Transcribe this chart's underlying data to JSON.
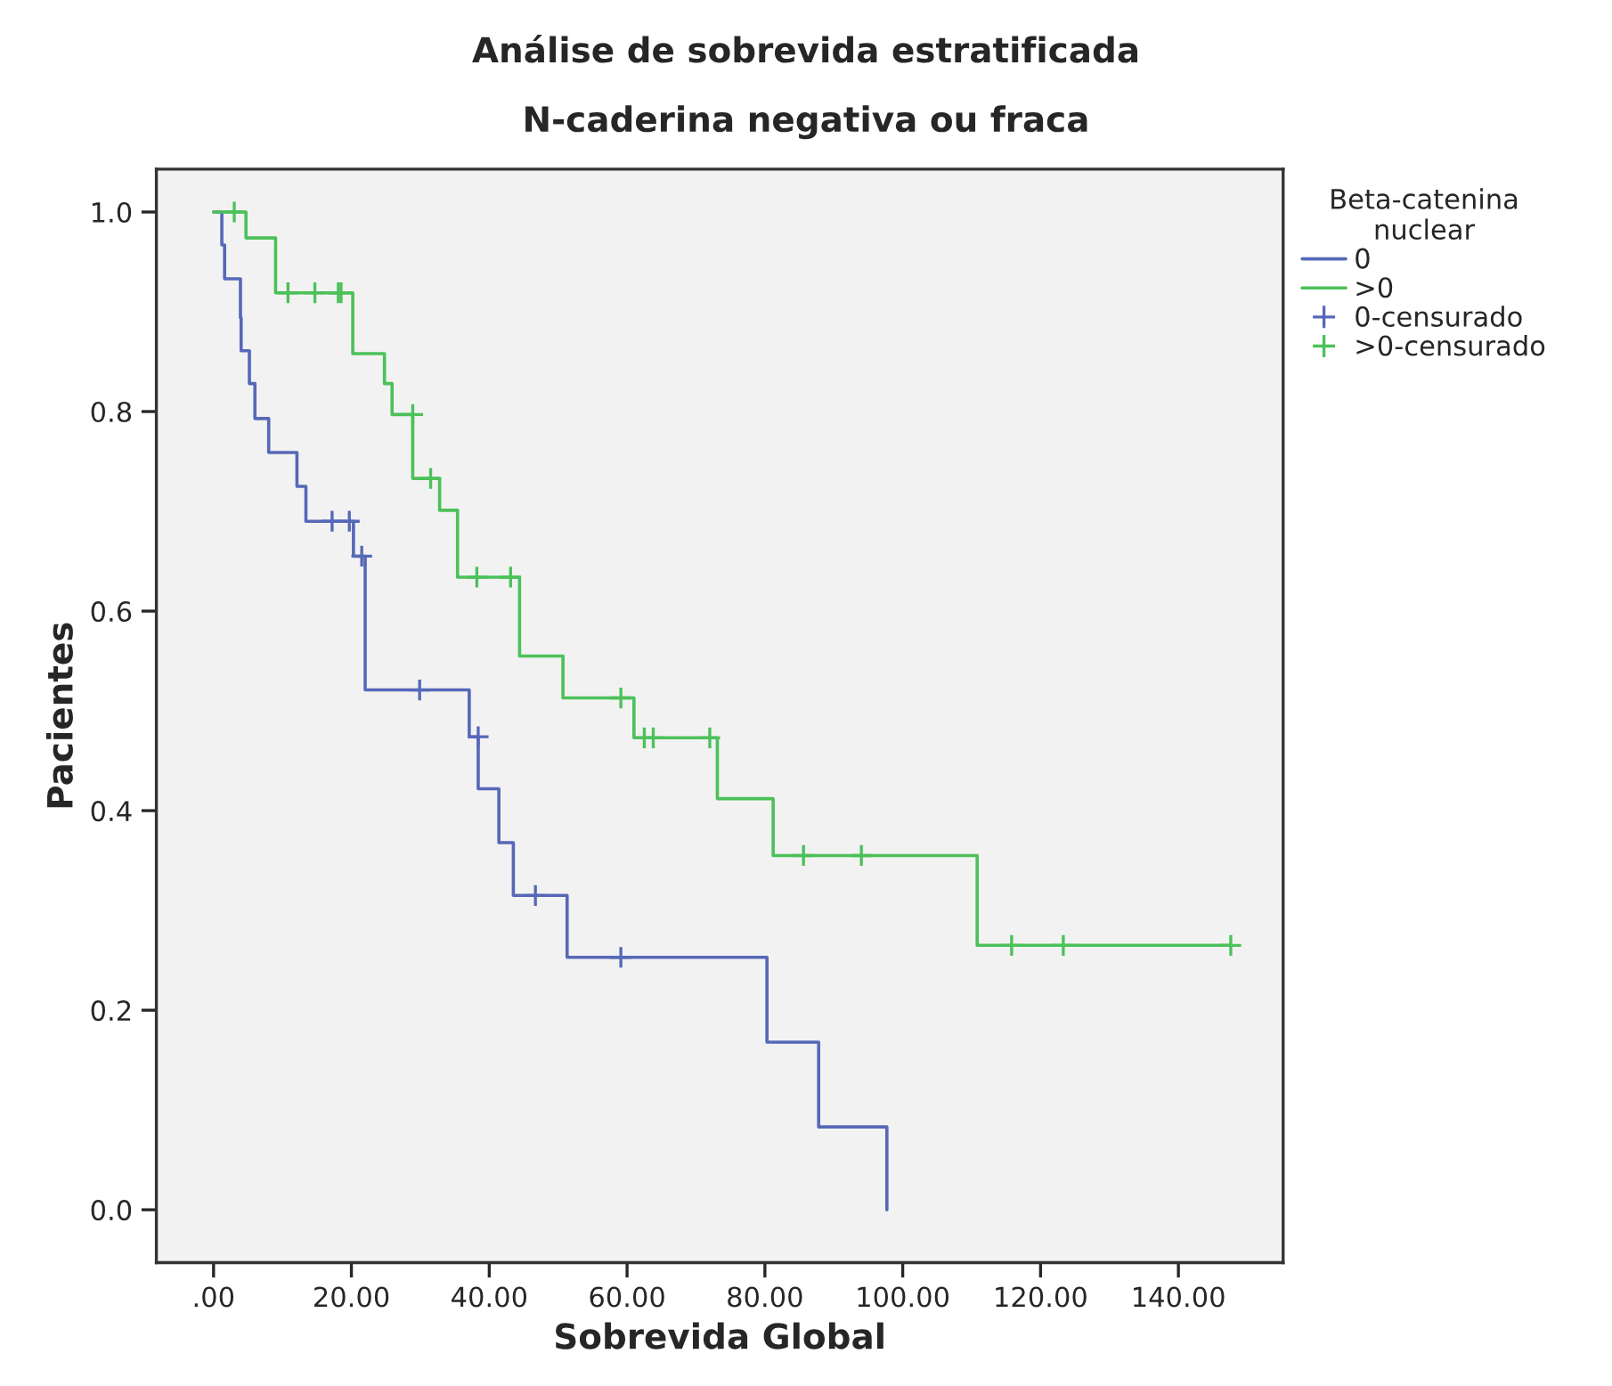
{
  "chart_data": {
    "type": "step",
    "title": "Análise de sobrevida estratificada",
    "subtitle": "N-caderina negativa ou fraca",
    "xlabel": "Sobrevida Global",
    "ylabel": "Pacientes",
    "legend_title": "Beta-catenina\nnuclear",
    "legend": "top right",
    "grid": false,
    "xlim": [
      -8.3,
      155.2
    ],
    "ylim": [
      -0.053,
      1.043
    ],
    "xticks": [
      {
        "value": 0,
        "label": ".00"
      },
      {
        "value": 20,
        "label": "20.00"
      },
      {
        "value": 40,
        "label": "40.00"
      },
      {
        "value": 60,
        "label": "60.00"
      },
      {
        "value": 80,
        "label": "80.00"
      },
      {
        "value": 100,
        "label": "100.00"
      },
      {
        "value": 120,
        "label": "120.00"
      },
      {
        "value": 140,
        "label": "140.00"
      }
    ],
    "yticks": [
      {
        "value": 0,
        "label": "0.0"
      },
      {
        "value": 0.2,
        "label": "0.2"
      },
      {
        "value": 0.4,
        "label": "0.4"
      },
      {
        "value": 0.6,
        "label": "0.6"
      },
      {
        "value": 0.8,
        "label": "0.8"
      },
      {
        "value": 1,
        "label": "1.0"
      }
    ],
    "series": [
      {
        "name": "0",
        "color": "#5668b8",
        "x": [
          0,
          1.2,
          1.6,
          3.9,
          4.0,
          5.2,
          6.0,
          8.0,
          12.1,
          13.4,
          20.3,
          22.0,
          37.1,
          38.4,
          41.4,
          43.5,
          51.3,
          80.3,
          87.8,
          97.7
        ],
        "values": [
          1.0,
          0.967,
          0.933,
          0.894,
          0.861,
          0.828,
          0.793,
          0.759,
          0.725,
          0.69,
          0.655,
          0.521,
          0.474,
          0.422,
          0.368,
          0.315,
          0.253,
          0.168,
          0.083,
          0.0
        ]
      },
      {
        "name": ">0",
        "color": "#4cc15a",
        "x": [
          0,
          4.7,
          9.0,
          20.2,
          24.8,
          25.9,
          28.9,
          32.8,
          35.4,
          44.4,
          50.7,
          61.0,
          73.1,
          81.2,
          110.8,
          147.6
        ],
        "values": [
          1.0,
          0.974,
          0.919,
          0.858,
          0.828,
          0.797,
          0.733,
          0.701,
          0.634,
          0.555,
          0.513,
          0.473,
          0.412,
          0.355,
          0.265,
          0.265
        ]
      },
      {
        "name": "0-censurado",
        "type": "scatter",
        "marker": "cross",
        "color": "#5668b8",
        "x": [
          17.2,
          19.7,
          21.5,
          29.9,
          38.4,
          46.7,
          59.1
        ],
        "values": [
          0.69,
          0.69,
          0.655,
          0.521,
          0.474,
          0.315,
          0.253
        ]
      },
      {
        "name": ">0-censurado",
        "type": "scatter",
        "marker": "cross",
        "color": "#4cc15a",
        "x": [
          3.0,
          10.8,
          14.7,
          18.1,
          18.5,
          28.9,
          31.5,
          38.2,
          43.1,
          59.1,
          62.5,
          63.8,
          72.0,
          85.6,
          94.0,
          115.8,
          123.3,
          147.6
        ],
        "values": [
          1.0,
          0.919,
          0.919,
          0.919,
          0.919,
          0.797,
          0.733,
          0.634,
          0.634,
          0.513,
          0.473,
          0.473,
          0.473,
          0.355,
          0.355,
          0.265,
          0.265,
          0.265
        ]
      }
    ]
  }
}
